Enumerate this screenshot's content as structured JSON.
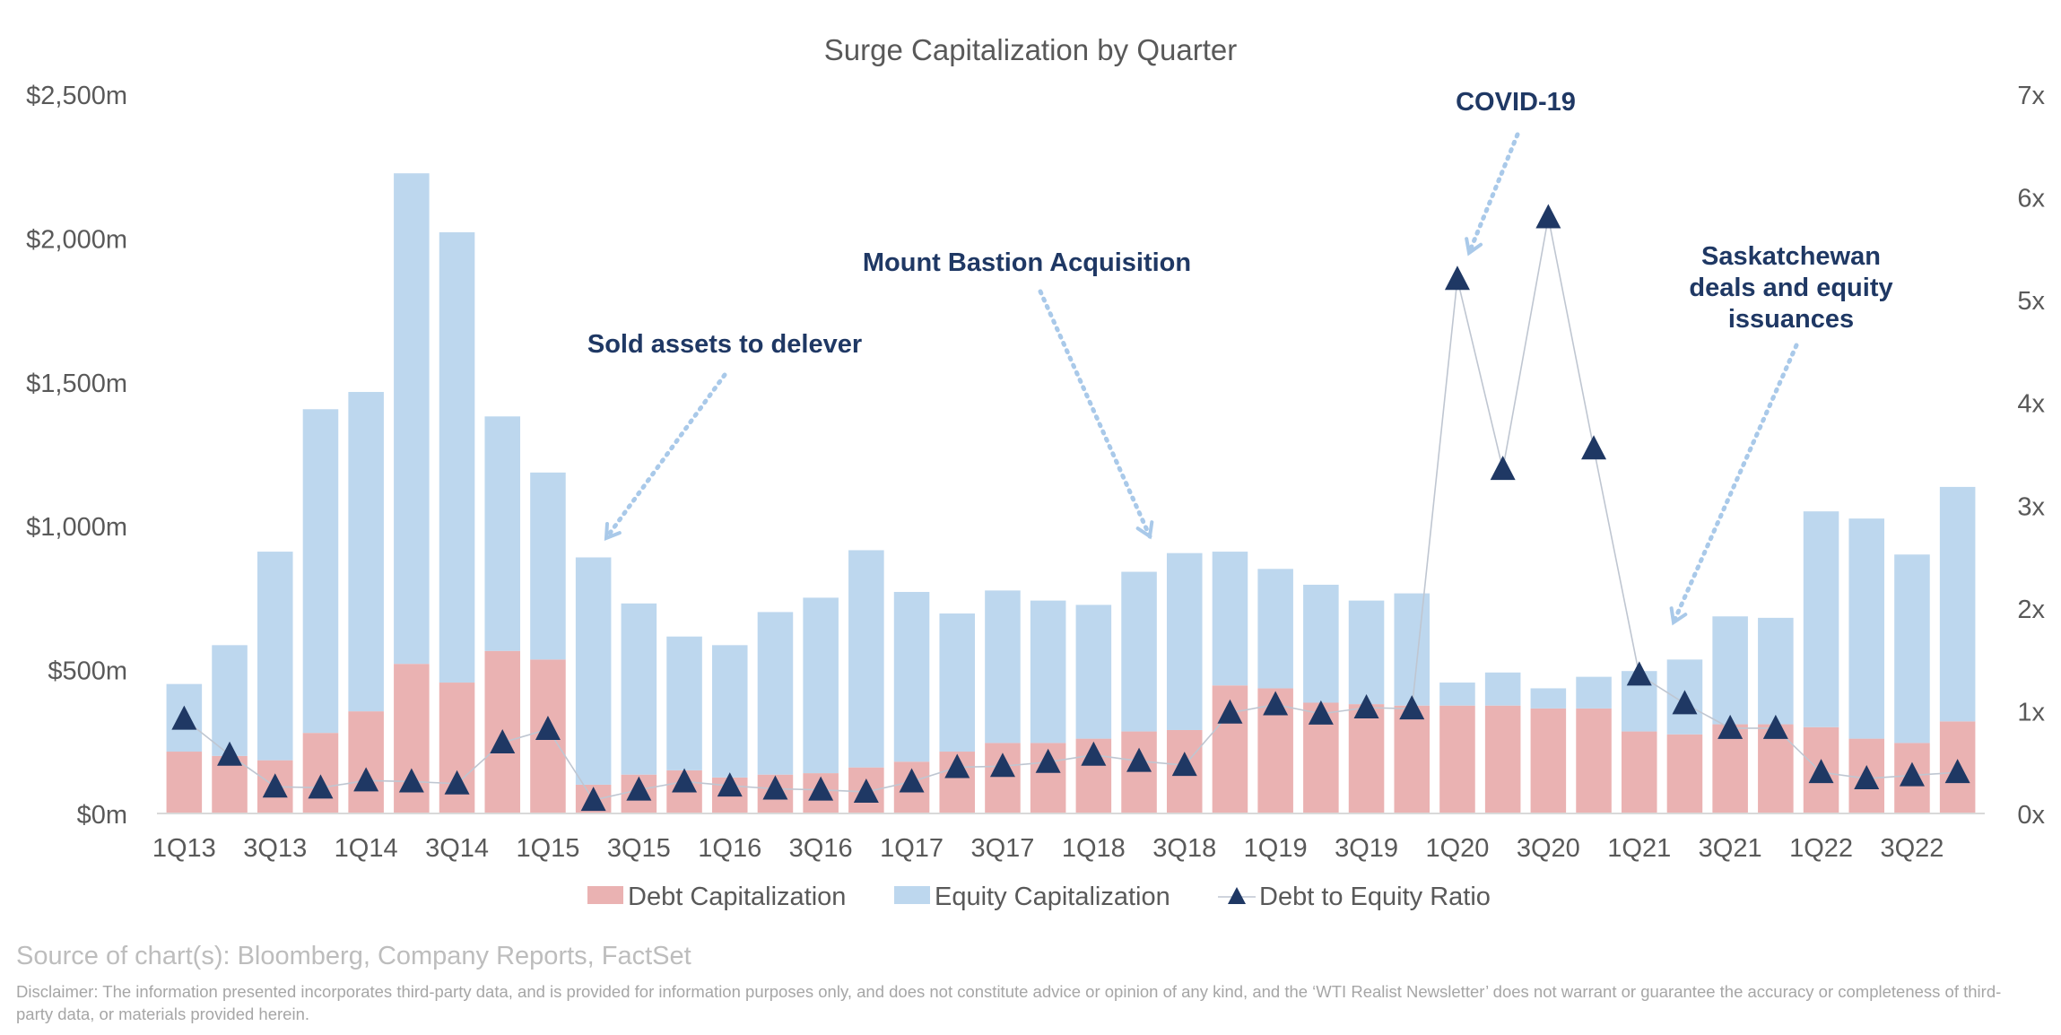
{
  "chart_data": {
    "type": "bar",
    "title": "Surge Capitalization by Quarter",
    "categories": [
      "1Q13",
      "2Q13",
      "3Q13",
      "4Q13",
      "1Q14",
      "2Q14",
      "3Q14",
      "4Q14",
      "1Q15",
      "2Q15",
      "3Q15",
      "4Q15",
      "1Q16",
      "2Q16",
      "3Q16",
      "4Q16",
      "1Q17",
      "2Q17",
      "3Q17",
      "4Q17",
      "1Q18",
      "2Q18",
      "3Q18",
      "4Q18",
      "1Q19",
      "2Q19",
      "3Q19",
      "4Q19",
      "1Q20",
      "2Q20",
      "3Q20",
      "4Q20",
      "1Q21",
      "2Q21",
      "3Q21",
      "4Q21",
      "1Q22",
      "2Q22",
      "3Q22",
      "4Q22"
    ],
    "x_tick_labels": [
      "1Q13",
      "3Q13",
      "1Q14",
      "3Q14",
      "1Q15",
      "3Q15",
      "1Q16",
      "3Q16",
      "1Q17",
      "3Q17",
      "1Q18",
      "3Q18",
      "1Q19",
      "3Q19",
      "1Q20",
      "3Q20",
      "1Q21",
      "3Q21",
      "1Q22",
      "3Q22"
    ],
    "stacked": true,
    "series": [
      {
        "name": "Debt Capitalization",
        "kind": "bar",
        "axis": "left",
        "color": "#eab2b2",
        "values": [
          215,
          200,
          185,
          280,
          355,
          520,
          455,
          565,
          535,
          100,
          135,
          150,
          125,
          135,
          140,
          160,
          180,
          215,
          245,
          245,
          260,
          285,
          290,
          445,
          435,
          385,
          380,
          375,
          375,
          375,
          365,
          365,
          285,
          275,
          310,
          310,
          300,
          260,
          245,
          320
        ]
      },
      {
        "name": "Equity Capitalization",
        "kind": "bar",
        "axis": "left",
        "color": "#bdd7ee",
        "values": [
          235,
          385,
          725,
          1125,
          1110,
          1705,
          1565,
          815,
          650,
          790,
          595,
          465,
          460,
          565,
          610,
          755,
          590,
          480,
          530,
          495,
          465,
          555,
          615,
          465,
          415,
          410,
          360,
          390,
          80,
          115,
          70,
          110,
          210,
          260,
          375,
          370,
          750,
          765,
          655,
          815
        ]
      },
      {
        "name": "Debt to Equity Ratio",
        "kind": "line",
        "axis": "right",
        "color": "#1f3864",
        "marker": "triangle",
        "values": [
          0.92,
          0.57,
          0.26,
          0.25,
          0.32,
          0.31,
          0.29,
          0.69,
          0.82,
          0.13,
          0.23,
          0.31,
          0.27,
          0.24,
          0.23,
          0.21,
          0.31,
          0.45,
          0.46,
          0.5,
          0.57,
          0.51,
          0.47,
          0.98,
          1.06,
          0.97,
          1.03,
          1.02,
          5.2,
          3.35,
          5.8,
          3.55,
          1.35,
          1.07,
          0.83,
          0.83,
          0.4,
          0.34,
          0.37,
          0.4
        ]
      }
    ],
    "left_axis": {
      "min": 0,
      "max": 2500,
      "ticks": [
        "$0m",
        "$500m",
        "$1,000m",
        "$1,500m",
        "$2,000m",
        "$2,500m"
      ]
    },
    "right_axis": {
      "min": 0,
      "max": 7,
      "ticks": [
        "0x",
        "1x",
        "2x",
        "3x",
        "4x",
        "5x",
        "6x",
        "7x"
      ]
    },
    "grid": false,
    "legend": "bottom",
    "annotations": [
      {
        "text": "Sold assets to delever",
        "target": "4Q15"
      },
      {
        "text": "Mount Bastion Acquisition",
        "target": "3Q18"
      },
      {
        "text": "COVID-19",
        "target": "1Q20"
      },
      {
        "text_lines": [
          "Saskatchewan",
          "deals and equity",
          "issuances"
        ],
        "target": "1Q21"
      }
    ]
  },
  "footer": {
    "source": "Source of chart(s): Bloomberg, Company Reports, FactSet",
    "disclaimer": "Disclaimer: The information presented incorporates third-party data, and is provided for information purposes only, and does not constitute advice or opinion of any kind, and the ‘WTI Realist Newsletter’ does not warrant or guarantee the accuracy or completeness of third-party data, or materials provided herein."
  },
  "colors": {
    "debt": "#eab2b2",
    "equity": "#bdd7ee",
    "ratio": "#1f3864",
    "annotation": "#1f3864",
    "arrow": "#a9c9e9",
    "axis_text": "#595959"
  }
}
